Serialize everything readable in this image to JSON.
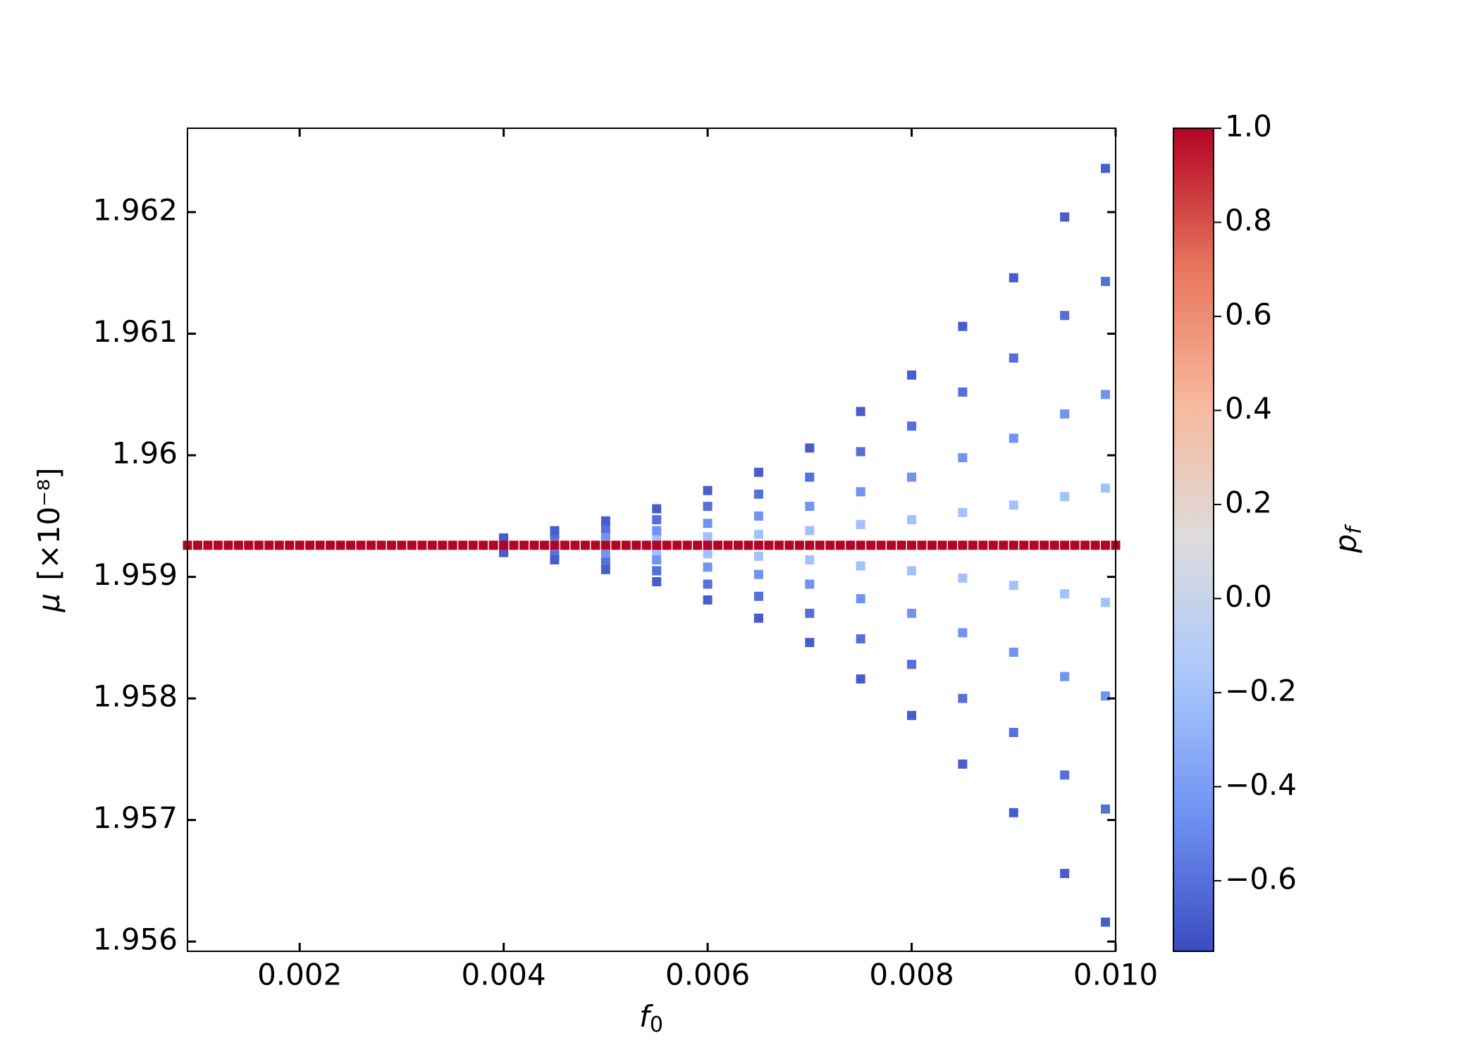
{
  "chart_data": {
    "type": "scatter",
    "xlabel": {
      "base": "f",
      "sub": "0"
    },
    "ylabel": {
      "symbol": "μ",
      "unit": "[×10⁻⁸]"
    },
    "xlim": [
      0.0009,
      0.01
    ],
    "ylim": [
      1.95592,
      1.96269
    ],
    "xticks": [
      0.002,
      0.004,
      0.006,
      0.008,
      {
        "value": 0.01,
        "label": "0.010"
      }
    ],
    "yticks": [
      1.956,
      1.957,
      1.958,
      1.959,
      1.96,
      1.961,
      1.962
    ],
    "tick_direction": "in",
    "marker": "square",
    "colorbar": {
      "label": {
        "base": "p",
        "sub": "f"
      },
      "clim": [
        -0.75,
        1.0
      ],
      "ticks": [
        {
          "value": -0.6,
          "label": "−0.6"
        },
        {
          "value": -0.4,
          "label": "−0.4"
        },
        {
          "value": -0.2,
          "label": "−0.2"
        },
        {
          "value": 0,
          "label": "0.0"
        },
        0.2,
        0.4,
        0.6,
        0.8,
        {
          "value": 1,
          "label": "1.0"
        }
      ],
      "colors": [
        "#3b4cc0",
        "#6f92f3",
        "#aac7fd",
        "#dddcdc",
        "#f7b89c",
        "#e7745b",
        "#b40426"
      ]
    },
    "x": [
      0.004,
      0.004,
      0.004,
      0.004,
      0.004,
      0.004,
      0.004,
      0.004,
      0.0045,
      0.0045,
      0.0045,
      0.0045,
      0.0045,
      0.0045,
      0.0045,
      0.0045,
      0.005,
      0.005,
      0.005,
      0.005,
      0.005,
      0.005,
      0.005,
      0.005,
      0.0055,
      0.0055,
      0.0055,
      0.0055,
      0.0055,
      0.0055,
      0.0055,
      0.0055,
      0.006,
      0.006,
      0.006,
      0.006,
      0.006,
      0.006,
      0.006,
      0.006,
      0.0065,
      0.0065,
      0.0065,
      0.0065,
      0.0065,
      0.0065,
      0.0065,
      0.0065,
      0.007,
      0.007,
      0.007,
      0.007,
      0.007,
      0.007,
      0.007,
      0.007,
      0.0075,
      0.0075,
      0.0075,
      0.0075,
      0.0075,
      0.0075,
      0.0075,
      0.0075,
      0.008,
      0.008,
      0.008,
      0.008,
      0.008,
      0.008,
      0.008,
      0.008,
      0.0085,
      0.0085,
      0.0085,
      0.0085,
      0.0085,
      0.0085,
      0.0085,
      0.0085,
      0.009,
      0.009,
      0.009,
      0.009,
      0.009,
      0.009,
      0.009,
      0.009,
      0.0095,
      0.0095,
      0.0095,
      0.0095,
      0.0095,
      0.0095,
      0.0095,
      0.0095,
      0.0099,
      0.0099,
      0.0099,
      0.0099,
      0.0099,
      0.0099,
      0.0099,
      0.0099,
      0.0009,
      0.001,
      0.0011,
      0.0012,
      0.0013,
      0.0014,
      0.0015,
      0.0016,
      0.0017,
      0.0018,
      0.0019,
      0.002,
      0.0021,
      0.0022,
      0.0023,
      0.0024,
      0.0025,
      0.0026,
      0.0027,
      0.0028,
      0.0029,
      0.003,
      0.0031,
      0.0032,
      0.0033,
      0.0034,
      0.0035,
      0.0036,
      0.0037,
      0.0038,
      0.0039,
      0.004,
      0.0041,
      0.0042,
      0.0043,
      0.0044,
      0.0045,
      0.0046,
      0.0047,
      0.0048,
      0.0049,
      0.005,
      0.0051,
      0.0052,
      0.0053,
      0.0054,
      0.0055,
      0.0056,
      0.0057,
      0.0058,
      0.0059,
      0.006,
      0.0061,
      0.0062,
      0.0063,
      0.0064,
      0.0065,
      0.0066,
      0.0067,
      0.0068,
      0.0069,
      0.007,
      0.0071,
      0.0072,
      0.0073,
      0.0074,
      0.0075,
      0.0076,
      0.0077,
      0.0078,
      0.0079,
      0.008,
      0.0081,
      0.0082,
      0.0083,
      0.0084,
      0.0085,
      0.0086,
      0.0087,
      0.0088,
      0.0089,
      0.009,
      0.0091,
      0.0092,
      0.0093,
      0.0094,
      0.0095,
      0.0096,
      0.0097,
      0.0098,
      0.0099,
      0.01
    ],
    "y": [
      1.959269,
      1.959284,
      1.959302,
      1.95932,
      1.959251,
      1.959236,
      1.959218,
      1.9592,
      1.959278,
      1.959308,
      1.959344,
      1.95938,
      1.959242,
      1.959212,
      1.959176,
      1.95914,
      1.95929,
      1.95934,
      1.9594,
      1.95946,
      1.95923,
      1.95918,
      1.95912,
      1.95906,
      1.959305,
      1.95938,
      1.95947,
      1.95956,
      1.959215,
      1.95914,
      1.95905,
      1.95896,
      1.95933,
      1.95944,
      1.95958,
      1.95971,
      1.95919,
      1.95908,
      1.95894,
      1.95881,
      1.95935,
      1.9595,
      1.95968,
      1.95986,
      1.95917,
      1.95902,
      1.95884,
      1.95866,
      1.95938,
      1.95958,
      1.95982,
      1.96006,
      1.95914,
      1.95894,
      1.9587,
      1.95846,
      1.95943,
      1.9597,
      1.96003,
      1.96036,
      1.95909,
      1.95882,
      1.95849,
      1.95816,
      1.95947,
      1.95982,
      1.96024,
      1.96066,
      1.95905,
      1.9587,
      1.95828,
      1.95786,
      1.95953,
      1.95998,
      1.96052,
      1.96106,
      1.95899,
      1.95854,
      1.958,
      1.95746,
      1.95959,
      1.96014,
      1.9608,
      1.96146,
      1.95893,
      1.95838,
      1.95772,
      1.95706,
      1.95966,
      1.96034,
      1.96115,
      1.96196,
      1.95886,
      1.95818,
      1.95737,
      1.95656,
      1.95973,
      1.9605,
      1.96143,
      1.96236,
      1.95879,
      1.95802,
      1.95709,
      1.95616,
      1.95926,
      1.95926,
      1.95926,
      1.95926,
      1.95926,
      1.95926,
      1.95926,
      1.95926,
      1.95926,
      1.95926,
      1.95926,
      1.95926,
      1.95926,
      1.95926,
      1.95926,
      1.95926,
      1.95926,
      1.95926,
      1.95926,
      1.95926,
      1.95926,
      1.95926,
      1.95926,
      1.95926,
      1.95926,
      1.95926,
      1.95926,
      1.95926,
      1.95926,
      1.95926,
      1.95926,
      1.95926,
      1.95926,
      1.95926,
      1.95926,
      1.95926,
      1.95926,
      1.95926,
      1.95926,
      1.95926,
      1.95926,
      1.95926,
      1.95926,
      1.95926,
      1.95926,
      1.95926,
      1.95926,
      1.95926,
      1.95926,
      1.95926,
      1.95926,
      1.95926,
      1.95926,
      1.95926,
      1.95926,
      1.95926,
      1.95926,
      1.95926,
      1.95926,
      1.95926,
      1.95926,
      1.95926,
      1.95926,
      1.95926,
      1.95926,
      1.95926,
      1.95926,
      1.95926,
      1.95926,
      1.95926,
      1.95926,
      1.95926,
      1.95926,
      1.95926,
      1.95926,
      1.95926,
      1.95926,
      1.95926,
      1.95926,
      1.95926,
      1.95926,
      1.95926,
      1.95926,
      1.95926,
      1.95926,
      1.95926,
      1.95926,
      1.95926,
      1.95926,
      1.95926,
      1.95926,
      1.95926
    ],
    "c": [
      -0.2,
      -0.45,
      -0.6,
      -0.68,
      -0.2,
      -0.45,
      -0.6,
      -0.68,
      -0.2,
      -0.45,
      -0.6,
      -0.68,
      -0.2,
      -0.45,
      -0.6,
      -0.68,
      -0.2,
      -0.45,
      -0.6,
      -0.68,
      -0.2,
      -0.45,
      -0.6,
      -0.68,
      -0.2,
      -0.45,
      -0.6,
      -0.68,
      -0.2,
      -0.45,
      -0.6,
      -0.68,
      -0.2,
      -0.45,
      -0.6,
      -0.68,
      -0.2,
      -0.45,
      -0.6,
      -0.68,
      -0.2,
      -0.45,
      -0.6,
      -0.68,
      -0.2,
      -0.45,
      -0.6,
      -0.68,
      -0.2,
      -0.45,
      -0.6,
      -0.68,
      -0.2,
      -0.45,
      -0.6,
      -0.68,
      -0.2,
      -0.45,
      -0.6,
      -0.68,
      -0.2,
      -0.45,
      -0.6,
      -0.68,
      -0.2,
      -0.45,
      -0.6,
      -0.68,
      -0.2,
      -0.45,
      -0.6,
      -0.68,
      -0.2,
      -0.45,
      -0.6,
      -0.68,
      -0.2,
      -0.45,
      -0.6,
      -0.68,
      -0.2,
      -0.45,
      -0.6,
      -0.68,
      -0.2,
      -0.45,
      -0.6,
      -0.68,
      -0.2,
      -0.45,
      -0.6,
      -0.68,
      -0.2,
      -0.45,
      -0.6,
      -0.68,
      -0.2,
      -0.45,
      -0.6,
      -0.68,
      -0.2,
      -0.45,
      -0.6,
      -0.68,
      1,
      1,
      1,
      1,
      1,
      1,
      1,
      1,
      1,
      1,
      1,
      1,
      1,
      1,
      1,
      1,
      1,
      1,
      1,
      1,
      1,
      1,
      1,
      1,
      1,
      1,
      1,
      1,
      1,
      1,
      1,
      1,
      1,
      1,
      1,
      1,
      1,
      1,
      1,
      1,
      1,
      1,
      1,
      1,
      1,
      1,
      1,
      1,
      1,
      1,
      1,
      1,
      1,
      1,
      1,
      1,
      1,
      1,
      1,
      1,
      1,
      1,
      1,
      1,
      1,
      1,
      1,
      1,
      1,
      1,
      1,
      1,
      1,
      1,
      1,
      1,
      1,
      1,
      1,
      1,
      1,
      1,
      1,
      1,
      1,
      1,
      1,
      1,
      1,
      1,
      1,
      1
    ]
  }
}
